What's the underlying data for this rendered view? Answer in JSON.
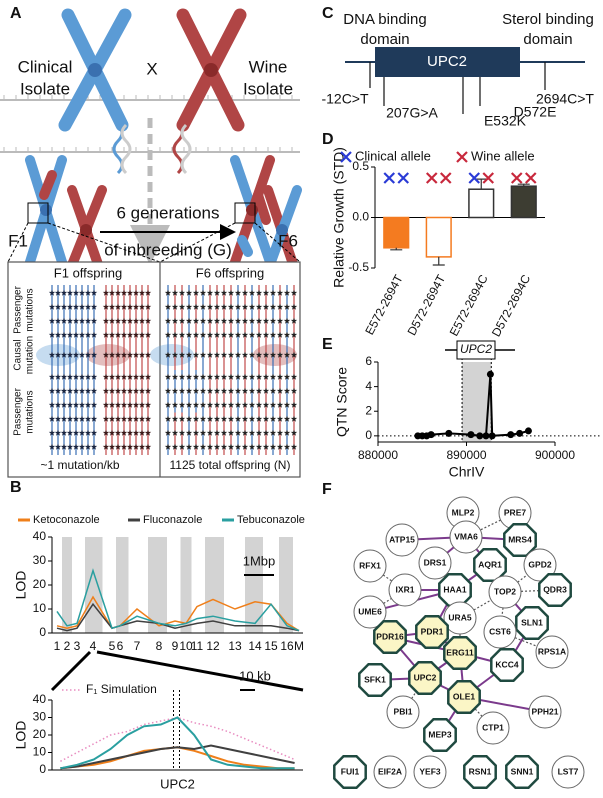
{
  "panel_labels": [
    "A",
    "B",
    "C",
    "D",
    "E",
    "F"
  ],
  "panel_a": {
    "clinical": [
      "Clinical",
      "Isolate"
    ],
    "wine": [
      "Wine",
      "Isolate"
    ],
    "cross": "X",
    "f1": "F1",
    "f6": "F6",
    "generations": [
      "6 generations",
      "of inbreeding (G)"
    ],
    "f1_box": "F1 offspring",
    "f6_box": "F6 offspring",
    "row_labels": [
      [
        "Passenger",
        "mutations"
      ],
      [
        "Causal",
        "mutation"
      ],
      [
        "Passenger",
        "mutations"
      ]
    ],
    "density": "~1 mutation/kb",
    "offspring": "1125 total offspring (N)"
  },
  "panel_c": {
    "domains": [
      [
        "DNA binding",
        "domain"
      ],
      [
        "Sterol binding",
        "domain"
      ]
    ],
    "gene": "UPC2",
    "variants": [
      "-12C>T",
      "207G>A",
      "E532K",
      "D572E",
      "2694C>T"
    ]
  },
  "panel_f": {
    "nodes": [
      "MLP2",
      "PRE7",
      "ATP15",
      "VMA6",
      "MRS4",
      "RFX1",
      "DRS1",
      "AQR1",
      "GPD2",
      "IXR1",
      "HAA1",
      "TOP2",
      "QDR3",
      "UME6",
      "URA5",
      "SLN1",
      "PDR16",
      "PDR1",
      "CST6",
      "ERG11",
      "RPS1A",
      "SFK1",
      "UPC2",
      "KCC4",
      "PBI1",
      "OLE1",
      "CTP1",
      "PPH21",
      "MEP3",
      "FUI1",
      "EIF2A",
      "YEF3",
      "RSN1",
      "SNN1",
      "LST7"
    ]
  },
  "chart_data": [
    {
      "type": "line",
      "ylabel": "LOD",
      "scale_bar": "1Mbp",
      "categories": [
        "1",
        "2",
        "3",
        "4",
        "5",
        "6",
        "7",
        "8",
        "9",
        "10",
        "11",
        "12",
        "13",
        "14",
        "15",
        "16",
        "M"
      ],
      "series": [
        {
          "name": "Ketoconazole",
          "color": "#ef7f1a",
          "values": [
            3,
            2,
            3,
            15,
            2,
            3,
            10,
            3,
            5,
            4,
            11,
            14,
            10,
            13,
            12,
            4,
            1
          ]
        },
        {
          "name": "Fluconazole",
          "color": "#404040",
          "values": [
            2,
            1,
            2,
            12,
            2,
            3,
            5,
            4,
            2,
            3,
            4,
            5,
            3,
            3,
            3,
            2,
            1
          ]
        },
        {
          "name": "Tebuconazole",
          "color": "#2a9fa0",
          "values": [
            9,
            3,
            4,
            26,
            2,
            3,
            7,
            4,
            3,
            4,
            6,
            7,
            5,
            4,
            12,
            3,
            1
          ]
        }
      ],
      "ylim": [
        0,
        40
      ],
      "yticks": [
        0,
        10,
        20,
        30,
        40
      ]
    },
    {
      "type": "line",
      "ylabel": "LOD",
      "scale_bar": "10 kb",
      "categories": [
        null,
        null,
        null,
        null,
        null,
        null,
        null,
        "UPC2",
        null,
        null,
        null,
        null,
        null,
        null,
        null
      ],
      "series": [
        {
          "name": "F₁ Simulation",
          "color": "#e88cc0",
          "values": [
            5,
            10,
            15,
            20,
            22,
            26,
            28,
            30,
            27,
            25,
            22,
            18,
            14,
            10,
            6
          ]
        },
        {
          "color": "#ef7f1a",
          "values": [
            1,
            2,
            3,
            5,
            8,
            11,
            12,
            13,
            11,
            8,
            5,
            3,
            2,
            1,
            1
          ]
        },
        {
          "color": "#404040",
          "values": [
            1,
            2,
            4,
            6,
            8,
            10,
            12,
            13,
            12,
            14,
            12,
            10,
            8,
            6,
            4
          ]
        },
        {
          "color": "#2a9fa0",
          "values": [
            1,
            3,
            6,
            12,
            20,
            25,
            26,
            30,
            20,
            6,
            3,
            2,
            1,
            1,
            1
          ]
        }
      ],
      "ylim": [
        0,
        40
      ],
      "yticks": [
        0,
        10,
        20,
        30,
        40
      ]
    },
    {
      "type": "bar",
      "ylabel": "Relative Growth (STD)",
      "legend": [
        {
          "label": "Clinical allele",
          "color": "#2a3bd6"
        },
        {
          "label": "Wine allele",
          "color": "#c8283c"
        }
      ],
      "categories": [
        "E572-2694T",
        "D572-2694T",
        "E572-2694C",
        "D572-2694C"
      ],
      "values": [
        -0.3,
        -0.39,
        0.28,
        0.31
      ],
      "errors": [
        0.02,
        0.08,
        0.1,
        0.02
      ],
      "colors": [
        "#f47b20",
        "#ffffff",
        "#ffffff",
        "#3d3d32"
      ],
      "edgecolors": [
        "#f47b20",
        "#f47b20",
        "#333333",
        "#333333"
      ],
      "ylim": [
        -0.5,
        0.5
      ],
      "yticks": [
        -0.5,
        {
          "value": 0,
          "label": "0.0"
        },
        0.5
      ]
    },
    {
      "type": "line",
      "ylabel": "QTN Score",
      "xlabel": "ChrIV",
      "annotation": "UPC2",
      "color": "#000000",
      "x": [
        884500,
        885000,
        885500,
        886000,
        888000,
        890500,
        891500,
        892200,
        892700,
        892900,
        895000,
        896000,
        897000
      ],
      "values": [
        0,
        0,
        0,
        0.1,
        0.2,
        0.1,
        0,
        0,
        5,
        0,
        0.1,
        0.2,
        0.4
      ],
      "span": [
        889500,
        892800
      ],
      "xlim": [
        880000,
        900000
      ],
      "xticks": [
        880000,
        890000,
        900000
      ],
      "ylim": [
        -0.5,
        6
      ],
      "yticks": [
        0,
        2,
        4,
        6
      ]
    }
  ]
}
